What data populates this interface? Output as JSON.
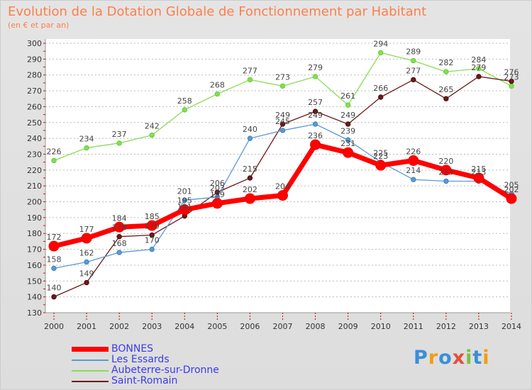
{
  "header": {
    "title": "Evolution de la Dotation Globale de Fonctionnement par Habitant",
    "subtitle": "(en € et par an)"
  },
  "logo": {
    "text": "Proxiti"
  },
  "colors": {
    "BONNES": "#ff0000",
    "Les Essards": "#5a9ad6",
    "Aubeterre-sur-Dronne": "#88dd55",
    "Saint-Romain": "#6b1a1a"
  },
  "chart_data": {
    "type": "line",
    "title": "Evolution de la Dotation Globale de Fonctionnement par Habitant",
    "subtitle": "(en € et par an)",
    "categories": [
      "2000",
      "2001",
      "2002",
      "2003",
      "2004",
      "2005",
      "2006",
      "2007",
      "2008",
      "2009",
      "2010",
      "2011",
      "2012",
      "2013",
      "2014"
    ],
    "ylim": [
      130,
      300
    ],
    "yticks": [
      130,
      140,
      150,
      160,
      170,
      180,
      190,
      200,
      210,
      220,
      230,
      240,
      250,
      260,
      270,
      280,
      290,
      300
    ],
    "grid": "horizontal-dashed",
    "legend": "bottom-left",
    "series": [
      {
        "name": "BONNES",
        "values": [
          172,
          177,
          184,
          185,
          195,
          199,
          202,
          204,
          236,
          231,
          223,
          226,
          220,
          215,
          202
        ]
      },
      {
        "name": "Les Essards",
        "values": [
          158,
          162,
          168,
          170,
          201,
          203,
          240,
          245,
          249,
          239,
          225,
          214,
          213,
          213,
          205
        ]
      },
      {
        "name": "Aubeterre-sur-Dronne",
        "values": [
          226,
          234,
          237,
          242,
          258,
          268,
          277,
          273,
          279,
          261,
          294,
          289,
          282,
          284,
          273
        ]
      },
      {
        "name": "Saint-Romain",
        "values": [
          140,
          149,
          178,
          179,
          191,
          206,
          215,
          249,
          257,
          249,
          266,
          277,
          265,
          279,
          276
        ]
      }
    ]
  }
}
